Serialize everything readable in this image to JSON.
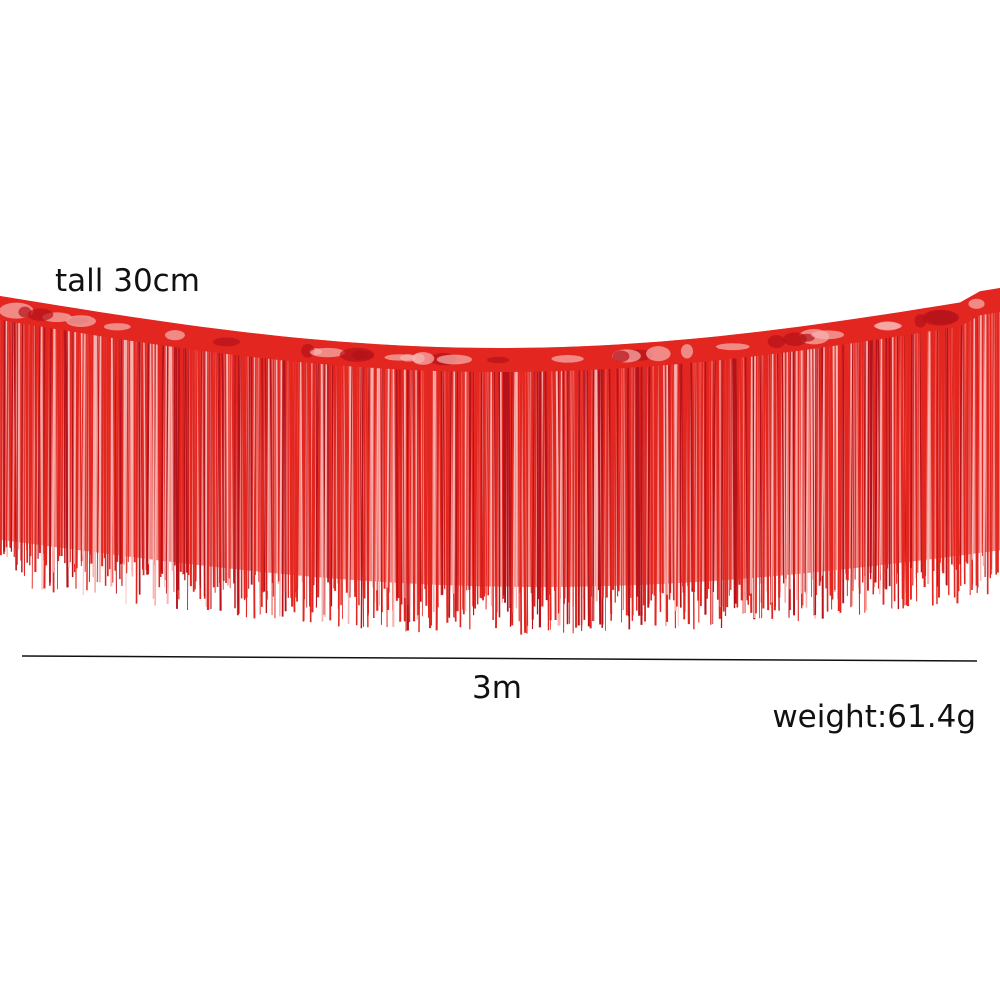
{
  "labels": {
    "height": "tall 30cm",
    "length": "3m",
    "weight": "weight:61.4g"
  },
  "colors": {
    "fringe": "#e3261f",
    "fringe_dark": "#b5121a",
    "fringe_highlight": "#f7b3b0",
    "background": "#ffffff",
    "line": "#111111"
  }
}
